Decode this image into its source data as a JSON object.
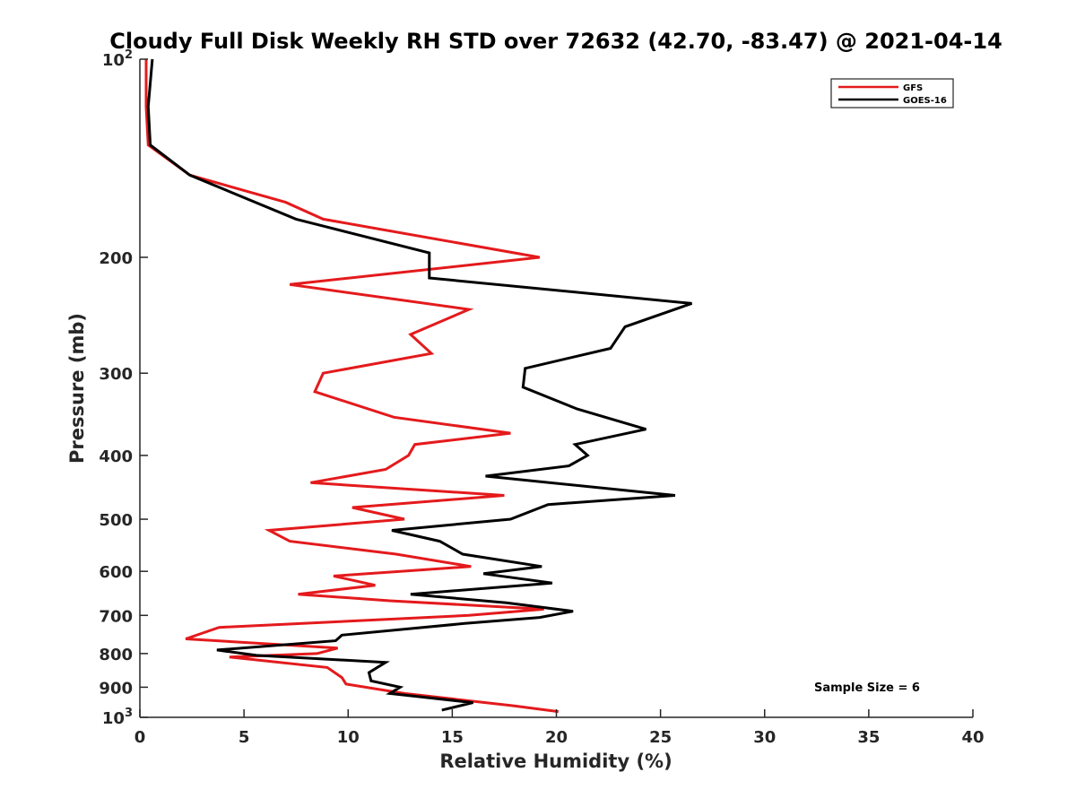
{
  "chart_data": {
    "type": "line",
    "title": "Cloudy Full Disk Weekly RH STD over 72632 (42.70, -83.47) @ 2021-04-14",
    "xlabel": "Relative Humidity (%)",
    "ylabel": "Pressure (mb)",
    "xlim": [
      0,
      40
    ],
    "ylim": [
      100,
      1000
    ],
    "yscale": "log",
    "y_reversed": true,
    "grid": false,
    "legend_position": "top-right",
    "x_ticks": [
      "0",
      "5",
      "10",
      "15",
      "20",
      "25",
      "30",
      "35",
      "40"
    ],
    "y_ticks": [
      {
        "value": 100,
        "base": "10",
        "exp": "2"
      },
      {
        "value": 200,
        "label": "200"
      },
      {
        "value": 300,
        "label": "300"
      },
      {
        "value": 400,
        "label": "400"
      },
      {
        "value": 500,
        "label": "500"
      },
      {
        "value": 600,
        "label": "600"
      },
      {
        "value": 700,
        "label": "700"
      },
      {
        "value": 800,
        "label": "800"
      },
      {
        "value": 900,
        "label": "900"
      },
      {
        "value": 1000,
        "base": "10",
        "exp": "3"
      }
    ],
    "annotation": "Sample Size = 6",
    "series": [
      {
        "name": "GFS",
        "color": "#e41a1c",
        "points": [
          [
            0.3,
            100
          ],
          [
            0.3,
            118
          ],
          [
            0.4,
            135
          ],
          [
            2.4,
            150
          ],
          [
            7.0,
            165
          ],
          [
            8.8,
            175
          ],
          [
            19.2,
            200
          ],
          [
            7.2,
            220
          ],
          [
            15.8,
            240
          ],
          [
            13.0,
            262
          ],
          [
            14.0,
            280
          ],
          [
            8.8,
            300
          ],
          [
            8.4,
            320
          ],
          [
            12.2,
            350
          ],
          [
            17.8,
            370
          ],
          [
            13.2,
            385
          ],
          [
            12.9,
            400
          ],
          [
            11.8,
            420
          ],
          [
            8.2,
            440
          ],
          [
            17.5,
            460
          ],
          [
            10.2,
            480
          ],
          [
            12.7,
            500
          ],
          [
            6.2,
            520
          ],
          [
            7.2,
            540
          ],
          [
            12.3,
            565
          ],
          [
            15.9,
            590
          ],
          [
            9.3,
            610
          ],
          [
            11.3,
            630
          ],
          [
            7.6,
            650
          ],
          [
            12.0,
            665
          ],
          [
            19.4,
            685
          ],
          [
            15.8,
            700
          ],
          [
            3.8,
            730
          ],
          [
            2.2,
            760
          ],
          [
            9.5,
            785
          ],
          [
            8.5,
            800
          ],
          [
            4.3,
            810
          ],
          [
            9.0,
            840
          ],
          [
            9.7,
            870
          ],
          [
            9.9,
            890
          ],
          [
            12.7,
            920
          ],
          [
            16.6,
            950
          ],
          [
            17.9,
            960
          ],
          [
            20.1,
            980
          ]
        ]
      },
      {
        "name": "GOES-16",
        "color": "#000000",
        "points": [
          [
            0.6,
            100
          ],
          [
            0.4,
            118
          ],
          [
            0.5,
            135
          ],
          [
            2.4,
            150
          ],
          [
            7.5,
            175
          ],
          [
            13.9,
            197
          ],
          [
            13.9,
            215
          ],
          [
            26.5,
            235
          ],
          [
            23.3,
            255
          ],
          [
            22.6,
            275
          ],
          [
            18.5,
            295
          ],
          [
            18.4,
            315
          ],
          [
            21.0,
            340
          ],
          [
            24.3,
            365
          ],
          [
            20.9,
            385
          ],
          [
            21.5,
            400
          ],
          [
            20.6,
            415
          ],
          [
            16.6,
            430
          ],
          [
            25.7,
            460
          ],
          [
            19.6,
            475
          ],
          [
            17.8,
            500
          ],
          [
            12.1,
            520
          ],
          [
            14.4,
            540
          ],
          [
            15.5,
            565
          ],
          [
            19.3,
            590
          ],
          [
            16.5,
            605
          ],
          [
            19.8,
            625
          ],
          [
            13.0,
            650
          ],
          [
            17.6,
            670
          ],
          [
            20.8,
            690
          ],
          [
            19.2,
            705
          ],
          [
            15.6,
            720
          ],
          [
            9.7,
            750
          ],
          [
            9.4,
            765
          ],
          [
            3.7,
            790
          ],
          [
            5.6,
            805
          ],
          [
            11.8,
            825
          ],
          [
            11.0,
            855
          ],
          [
            11.1,
            880
          ],
          [
            12.5,
            900
          ],
          [
            12.0,
            920
          ],
          [
            16.0,
            950
          ],
          [
            14.5,
            975
          ]
        ]
      }
    ]
  }
}
